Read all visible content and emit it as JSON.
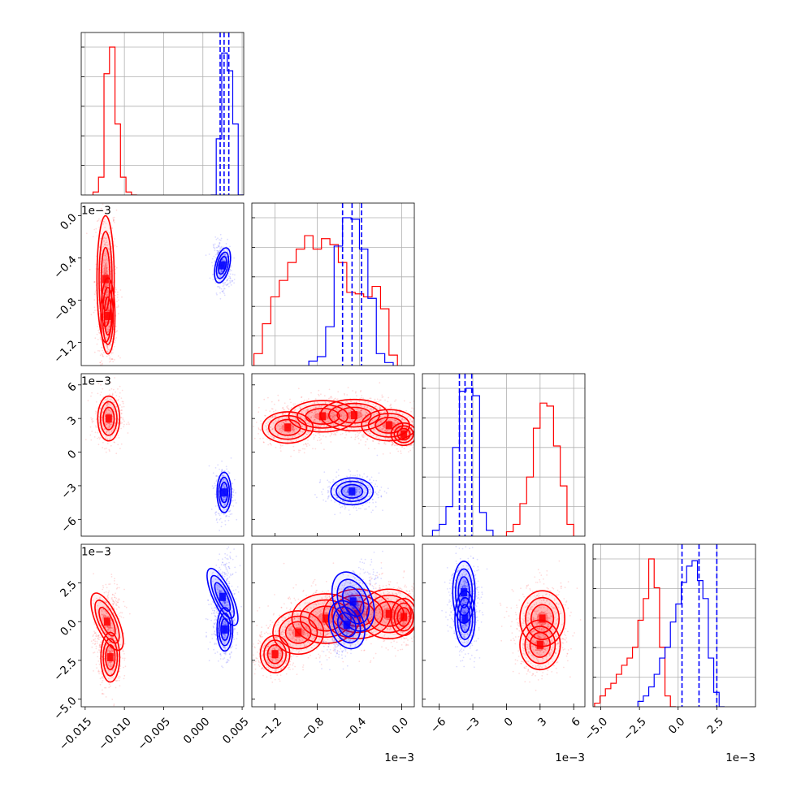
{
  "figure": {
    "type": "corner-plot"
  },
  "colors": {
    "series_a": "#ff0000",
    "series_b": "#0000ff",
    "grid": "#b0b0b0",
    "frame": "#000000"
  },
  "chart_data": {
    "type": "corner",
    "series": [
      {
        "color": "#ff0000"
      },
      {
        "color": "#0000ff"
      }
    ],
    "params": [
      {
        "range": [
          -0.0155,
          0.0052
        ],
        "ticks": [
          -0.015,
          -0.01,
          -0.005,
          0.0,
          0.005
        ],
        "tick_labels": [
          "−0.015",
          "−0.010",
          "−0.005",
          "0.000",
          "0.005"
        ],
        "exponent": ""
      },
      {
        "range": [
          -1.42,
          0.12
        ],
        "ticks": [
          -1.2,
          -0.8,
          -0.4,
          0.0
        ],
        "tick_labels": [
          "−1.2",
          "−0.8",
          "−0.4",
          "0.0"
        ],
        "exponent": "1e−3"
      },
      {
        "range": [
          -7.5,
          7.0
        ],
        "ticks": [
          -6,
          -3,
          0,
          3,
          6
        ],
        "tick_labels": [
          "−6",
          "−3",
          "0",
          "3",
          "6"
        ],
        "exponent": "1e−3"
      },
      {
        "range": [
          -5.5,
          5.0
        ],
        "ticks": [
          -5.0,
          -2.5,
          0.0,
          2.5
        ],
        "tick_labels": [
          "−5.0",
          "−2.5",
          "0.0",
          "2.5"
        ],
        "exponent": "1e−3"
      }
    ],
    "diag": [
      {
        "red": {
          "edges_start": -0.014,
          "width": 0.0007,
          "counts": [
            0.02,
            0.12,
            0.82,
            1.0,
            0.48,
            0.12,
            0.02,
            0.0
          ]
        },
        "blue": {
          "edges_start": 0.001,
          "width": 0.0007,
          "counts": [
            0.0,
            0.38,
            0.96,
            0.84,
            0.48,
            0.0
          ]
        },
        "blue_quantiles": [
          0.0022,
          0.0027,
          0.0033
        ]
      },
      {
        "red": {
          "edges_start": -1.4,
          "width": 0.08,
          "counts": [
            0.08,
            0.28,
            0.46,
            0.57,
            0.69,
            0.78,
            0.87,
            0.78,
            0.85,
            0.81,
            0.69,
            0.49,
            0.48,
            0.46,
            0.53,
            0.38,
            0.07
          ]
        },
        "blue": {
          "edges_start": -0.88,
          "width": 0.08,
          "counts": [
            0.03,
            0.06,
            0.26,
            0.8,
            0.99,
            0.98,
            0.78,
            0.45,
            0.08,
            0.02
          ]
        },
        "blue_quantiles": [
          -0.56,
          -0.47,
          -0.38
        ]
      },
      {
        "red": {
          "edges_start": 0.0,
          "width": 0.6,
          "counts": [
            0.03,
            0.08,
            0.22,
            0.4,
            0.73,
            0.9,
            0.88,
            0.61,
            0.34,
            0.08
          ]
        },
        "blue": {
          "edges_start": -6.6,
          "width": 0.6,
          "counts": [
            0.04,
            0.08,
            0.2,
            0.6,
            0.98,
            1.0,
            0.95,
            0.16,
            0.04
          ]
        },
        "blue_quantiles": [
          -4.2,
          -3.7,
          -3.1
        ]
      },
      {
        "red": {
          "edges_start": -5.4,
          "width": 0.35,
          "counts": [
            0.02,
            0.06,
            0.1,
            0.13,
            0.18,
            0.23,
            0.27,
            0.33,
            0.48,
            0.6,
            0.82,
            0.66,
            0.33,
            0.06,
            0.0
          ]
        },
        "blue": {
          "edges_start": -2.6,
          "width": 0.35,
          "counts": [
            0.03,
            0.06,
            0.11,
            0.18,
            0.27,
            0.33,
            0.47,
            0.57,
            0.69,
            0.78,
            0.81,
            0.7,
            0.6,
            0.27,
            0.08,
            0.0
          ]
        },
        "blue_quantiles": [
          0.25,
          1.35,
          2.5
        ]
      }
    ],
    "pairs": [
      {
        "col": 0,
        "row": 1,
        "red": [
          {
            "cx": -0.0124,
            "cy": -0.6,
            "sx": 0.00055,
            "sy": 0.3,
            "rho": 0.0
          },
          {
            "cx": -0.0121,
            "cy": -0.95,
            "sx": 0.00045,
            "sy": 0.18,
            "rho": 0.0
          }
        ],
        "blue": [
          {
            "cx": 0.0025,
            "cy": -0.47,
            "sx": 0.00045,
            "sy": 0.085,
            "rho": -0.2
          }
        ]
      },
      {
        "col": 0,
        "row": 2,
        "red": [
          {
            "cx": -0.012,
            "cy": 3.0,
            "sx": 0.0007,
            "sy": 1.0,
            "rho": 0.0
          }
        ],
        "blue": [
          {
            "cx": 0.0027,
            "cy": -3.6,
            "sx": 0.00045,
            "sy": 0.9,
            "rho": 0.0
          }
        ]
      },
      {
        "col": 0,
        "row": 3,
        "red": [
          {
            "cx": -0.0122,
            "cy": 0.0,
            "sx": 0.0007,
            "sy": 1.0,
            "rho": 0.4
          },
          {
            "cx": -0.0118,
            "cy": -2.3,
            "sx": 0.0006,
            "sy": 0.8,
            "rho": 0.0
          }
        ],
        "blue": [
          {
            "cx": 0.0025,
            "cy": 1.6,
            "sx": 0.0006,
            "sy": 1.0,
            "rho": 0.35
          },
          {
            "cx": 0.0028,
            "cy": -0.5,
            "sx": 0.0005,
            "sy": 0.7,
            "rho": 0.0
          }
        ]
      },
      {
        "col": 1,
        "row": 2,
        "red": [
          {
            "cx": -1.08,
            "cy": 2.2,
            "sx": 0.12,
            "sy": 0.7,
            "rho": 0.0
          },
          {
            "cx": -0.75,
            "cy": 3.2,
            "sx": 0.16,
            "sy": 0.7,
            "rho": 0.0
          },
          {
            "cx": -0.45,
            "cy": 3.3,
            "sx": 0.16,
            "sy": 0.7,
            "rho": 0.0
          },
          {
            "cx": -0.12,
            "cy": 2.4,
            "sx": 0.13,
            "sy": 0.7,
            "rho": 0.0
          },
          {
            "cx": 0.02,
            "cy": 1.6,
            "sx": 0.06,
            "sy": 0.5,
            "rho": 0.0
          }
        ],
        "blue": [
          {
            "cx": -0.47,
            "cy": -3.5,
            "sx": 0.1,
            "sy": 0.6,
            "rho": 0.0
          }
        ]
      },
      {
        "col": 1,
        "row": 3,
        "red": [
          {
            "cx": -1.2,
            "cy": -2.1,
            "sx": 0.07,
            "sy": 0.6,
            "rho": 0.0
          },
          {
            "cx": -0.98,
            "cy": -0.7,
            "sx": 0.12,
            "sy": 0.7,
            "rho": 0.0
          },
          {
            "cx": -0.72,
            "cy": 0.2,
            "sx": 0.16,
            "sy": 0.8,
            "rho": 0.0
          },
          {
            "cx": -0.42,
            "cy": 0.5,
            "sx": 0.16,
            "sy": 0.8,
            "rho": 0.0
          },
          {
            "cx": -0.12,
            "cy": 0.5,
            "sx": 0.14,
            "sy": 0.8,
            "rho": 0.0
          },
          {
            "cx": 0.02,
            "cy": 0.3,
            "sx": 0.06,
            "sy": 0.6,
            "rho": 0.0
          }
        ],
        "blue": [
          {
            "cx": -0.46,
            "cy": 1.3,
            "sx": 0.09,
            "sy": 1.0,
            "rho": 0.6
          },
          {
            "cx": -0.52,
            "cy": -0.2,
            "sx": 0.08,
            "sy": 0.8,
            "rho": 0.6
          }
        ]
      },
      {
        "col": 2,
        "row": 3,
        "red": [
          {
            "cx": 3.2,
            "cy": 0.2,
            "sx": 1.0,
            "sy": 0.9,
            "rho": 0.0
          },
          {
            "cx": 3.0,
            "cy": -1.5,
            "sx": 0.9,
            "sy": 0.8,
            "rho": 0.0
          }
        ],
        "blue": [
          {
            "cx": -3.8,
            "cy": 1.9,
            "sx": 0.5,
            "sy": 1.0,
            "rho": 0.0
          },
          {
            "cx": -3.7,
            "cy": 0.2,
            "sx": 0.45,
            "sy": 0.9,
            "rho": 0.0
          }
        ]
      }
    ]
  }
}
